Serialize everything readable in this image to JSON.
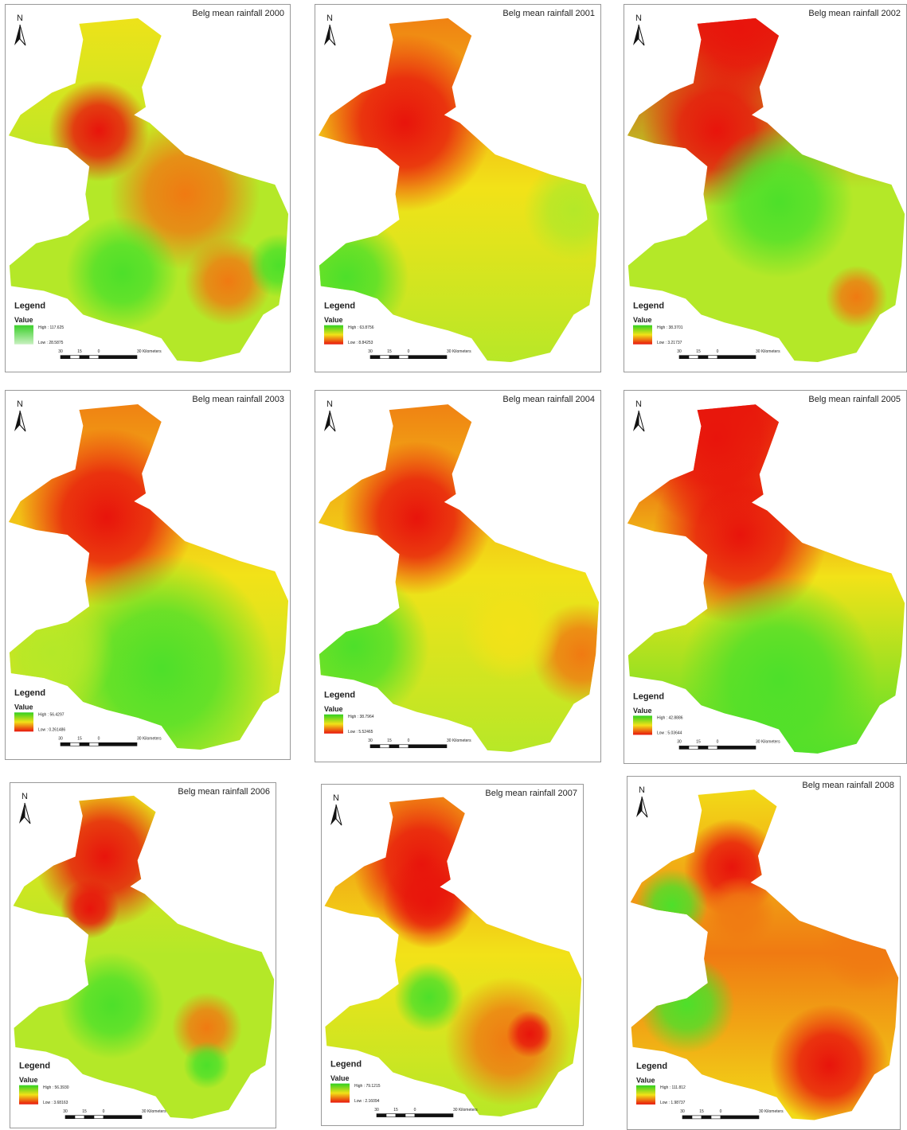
{
  "panels": [
    {
      "title": "Belg mean rainfall 2000",
      "north": "N",
      "legend": "Legend",
      "value_label": "Value",
      "high": "High : 117.625",
      "low": "Low : 28.5875",
      "scale": [
        "30",
        "15",
        "0",
        "30 Kilometers"
      ]
    },
    {
      "title": "Belg mean rainfall 2001",
      "north": "N",
      "legend": "Legend",
      "value_label": "Value",
      "high": "High : 63.8756",
      "low": "Low : 8.84253",
      "scale": [
        "30",
        "15",
        "0",
        "30 Kilometers"
      ]
    },
    {
      "title": "Belg mean rainfall 2002",
      "north": "N",
      "legend": "Legend",
      "value_label": "Value",
      "high": "High : 38.3701",
      "low": "Low : 3.21737",
      "scale": [
        "30",
        "15",
        "0",
        "30 Kilometers"
      ]
    },
    {
      "title": "Belg mean rainfall 2003",
      "north": "N",
      "legend": "Legend",
      "value_label": "Value",
      "high": "High : 56.4297",
      "low": "Low : 0.261486",
      "scale": [
        "30",
        "15",
        "0",
        "30 Kilometers"
      ]
    },
    {
      "title": "Belg mean rainfall 2004",
      "north": "N",
      "legend": "Legend",
      "value_label": "Value",
      "high": "High : 38.7964",
      "low": "Low : 5.52465",
      "scale": [
        "30",
        "15",
        "0",
        "30 Kilometers"
      ]
    },
    {
      "title": "Belg mean rainfall 2005",
      "north": "N",
      "legend": "Legend",
      "value_label": "Value",
      "high": "High : 42.8886",
      "low": "Low : 5.03644",
      "scale": [
        "30",
        "15",
        "0",
        "30 Kilometers"
      ]
    },
    {
      "title": "Belg mean rainfall 2006",
      "north": "N",
      "legend": "Legend",
      "value_label": "Value",
      "high": "High : 56.3930",
      "low": "Low : 3.68163",
      "scale": [
        "30",
        "15",
        "0",
        "30 Kilometers"
      ]
    },
    {
      "title": "Belg mean rainfall 2007",
      "north": "N",
      "legend": "Legend",
      "value_label": "Value",
      "high": "High : 79.1215",
      "low": "Low : 2.16094",
      "scale": [
        "30",
        "15",
        "0",
        "30 Kilometers"
      ]
    },
    {
      "title": "Belg mean rainfall 2008",
      "north": "N",
      "legend": "Legend",
      "value_label": "Value",
      "high": "High : 111.812",
      "low": "Low : 1.98737",
      "scale": [
        "30",
        "15",
        "0",
        "30 Kilometers"
      ]
    }
  ]
}
